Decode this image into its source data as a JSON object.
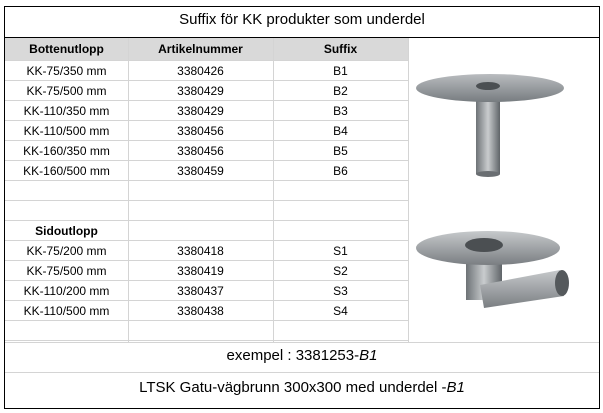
{
  "header": {
    "title": "Suffix för KK produkter som underdel"
  },
  "table": {
    "headers": [
      "Bottenutlopp",
      "Artikelnummer",
      "Suffix"
    ],
    "rows": [
      [
        "KK-75/350 mm",
        "3380426",
        "B1"
      ],
      [
        "KK-75/500 mm",
        "3380429",
        "B2"
      ],
      [
        "KK-110/350 mm",
        "3380429",
        "B3"
      ],
      [
        "KK-110/500 mm",
        "3380456",
        "B4"
      ],
      [
        "KK-160/350 mm",
        "3380456",
        "B5"
      ],
      [
        "KK-160/500 mm",
        "3380459",
        "B6"
      ]
    ],
    "section2": "Sidoutlopp",
    "rows2": [
      [
        "KK-75/200 mm",
        "3380418",
        "S1"
      ],
      [
        "KK-75/500 mm",
        "3380419",
        "S2"
      ],
      [
        "KK-110/200 mm",
        "3380437",
        "S3"
      ],
      [
        "KK-110/500 mm",
        "3380438",
        "S4"
      ]
    ]
  },
  "example": {
    "text": "exempel : 3381253-",
    "suffix": "B1"
  },
  "footer": {
    "text": "LTSK Gatu-vägbrunn 300x300 med underdel -",
    "suffix": "B1"
  }
}
